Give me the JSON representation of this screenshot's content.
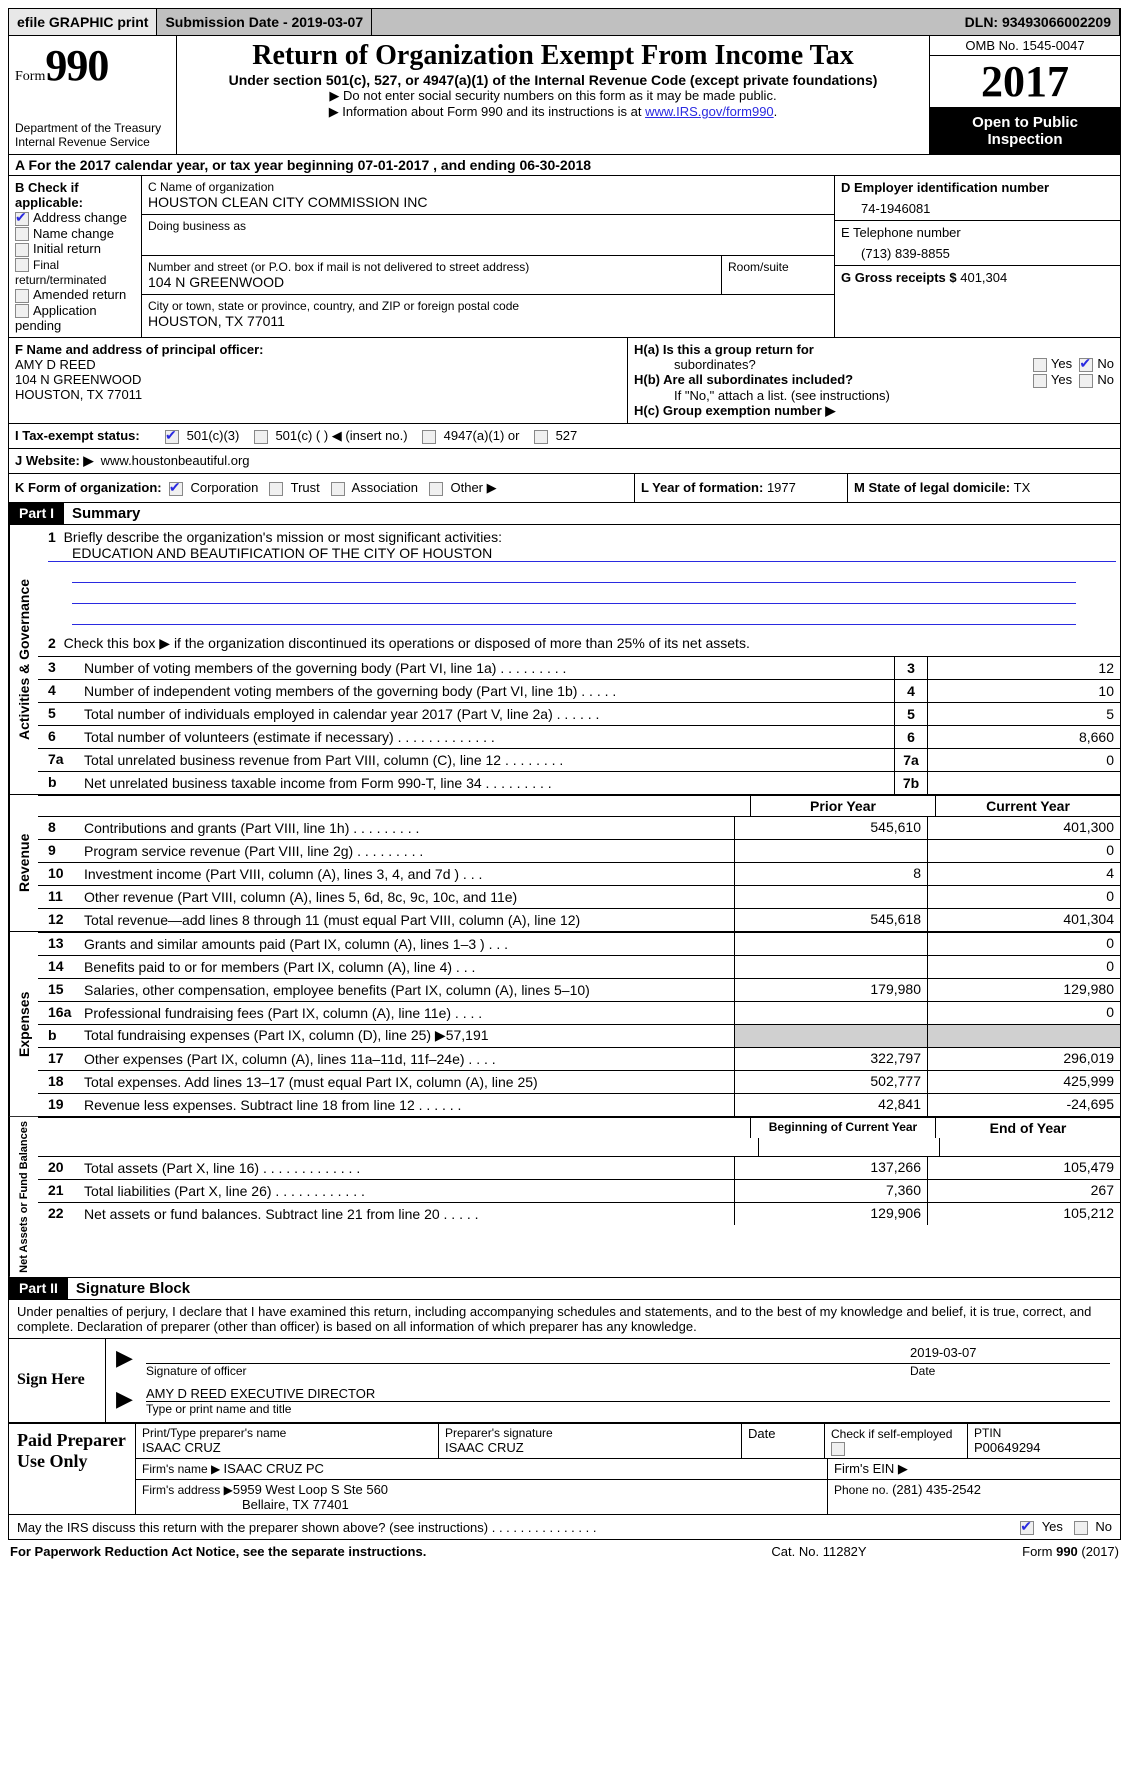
{
  "colors": {
    "header_bg": "#c0c0c0",
    "link": "#2a2ae0",
    "black": "#000000",
    "shade": "#d0d0d0"
  },
  "topbar": {
    "efile": "efile GRAPHIC print",
    "submission_label": "Submission Date - 2019-03-07",
    "dln": "DLN: 93493066002209"
  },
  "header": {
    "form_label": "Form",
    "form_number": "990",
    "dept": "Department of the Treasury",
    "irs": "Internal Revenue Service",
    "title": "Return of Organization Exempt From Income Tax",
    "subtitle": "Under section 501(c), 527, or 4947(a)(1) of the Internal Revenue Code (except private foundations)",
    "note1": "▶ Do not enter social security numbers on this form as it may be made public.",
    "note2_pre": "▶ Information about Form 990 and its instructions is at ",
    "note2_link": "www.IRS.gov/form990",
    "omb": "OMB No. 1545-0047",
    "year": "2017",
    "open1": "Open to Public",
    "open2": "Inspection"
  },
  "lineA": "A  For the 2017 calendar year, or tax year beginning 07-01-2017    , and ending 06-30-2018",
  "boxB": {
    "label": "B Check if applicable:",
    "items": [
      {
        "label": "Address change",
        "checked": true
      },
      {
        "label": "Name change",
        "checked": false
      },
      {
        "label": "Initial return",
        "checked": false
      },
      {
        "label": "Final return/terminated",
        "checked": false
      },
      {
        "label": "Amended return",
        "checked": false
      },
      {
        "label": "Application pending",
        "checked": false
      }
    ]
  },
  "boxC": {
    "name_label": "C Name of organization",
    "name": "HOUSTON CLEAN CITY COMMISSION INC",
    "dba_label": "Doing business as",
    "dba": "",
    "street_label": "Number and street (or P.O. box if mail is not delivered to street address)",
    "room_label": "Room/suite",
    "street": "104 N GREENWOOD",
    "city_label": "City or town, state or province, country, and ZIP or foreign postal code",
    "city": "HOUSTON, TX  77011"
  },
  "boxD": {
    "label": "D Employer identification number",
    "value": "74-1946081"
  },
  "boxE": {
    "label": "E Telephone number",
    "value": "(713) 839-8855"
  },
  "boxG": {
    "label": "G Gross receipts $ ",
    "value": "401,304"
  },
  "boxF": {
    "label": "F  Name and address of principal officer:",
    "name": "AMY D REED",
    "street": "104 N GREENWOOD",
    "city": "HOUSTON, TX  77011"
  },
  "boxH": {
    "a_label": "H(a)  Is this a group return for",
    "a_label2": "subordinates?",
    "a_yes": "Yes",
    "a_no": "No",
    "a_checked": "No",
    "b_label": "H(b)  Are all subordinates included?",
    "b_yes": "Yes",
    "b_no": "No",
    "note": "If \"No,\" attach a list. (see instructions)",
    "c_label": "H(c)  Group exemption number ▶"
  },
  "lineI": {
    "label": "I   Tax-exempt status:",
    "c3": "501(c)(3)",
    "c3_checked": true,
    "c": "501(c) (   ) ◀ (insert no.)",
    "a4947": "4947(a)(1) or",
    "s527": "527"
  },
  "lineJ": {
    "label": "J   Website: ▶",
    "value": "www.houstonbeautiful.org"
  },
  "lineK": {
    "label": "K Form of organization:",
    "corp": "Corporation",
    "corp_checked": true,
    "trust": "Trust",
    "assoc": "Association",
    "other": "Other ▶",
    "L_label": "L Year of formation: ",
    "L_val": "1977",
    "M_label": "M State of legal domicile: ",
    "M_val": "TX"
  },
  "partI": {
    "hdr": "Part I",
    "title": "Summary",
    "tab1": "Activities & Governance",
    "q1": "Briefly describe the organization's mission or most significant activities:",
    "mission": "EDUCATION AND BEAUTIFICATION OF THE CITY OF HOUSTON",
    "q2": "Check this box ▶        if the organization discontinued its operations or disposed of more than 25% of its net assets.",
    "lines": [
      {
        "n": "3",
        "t": "Number of voting members of the governing body (Part VI, line 1a)   .    .    .    .    .    .    .    .    .",
        "box": "3",
        "v": "12"
      },
      {
        "n": "4",
        "t": "Number of independent voting members of the governing body (Part VI, line 1b)   .    .    .    .    .",
        "box": "4",
        "v": "10"
      },
      {
        "n": "5",
        "t": "Total number of individuals employed in calendar year 2017 (Part V, line 2a)   .    .    .    .    .    .",
        "box": "5",
        "v": "5"
      },
      {
        "n": "6",
        "t": "Total number of volunteers (estimate if necessary)   .    .    .    .    .    .    .    .    .    .    .    .    .",
        "box": "6",
        "v": "8,660"
      },
      {
        "n": "7a",
        "t": "Total unrelated business revenue from Part VIII, column (C), line 12   .    .    .    .    .    .    .    .",
        "box": "7a",
        "v": "0"
      },
      {
        "n": "b",
        "t": "Net unrelated business taxable income from Form 990-T, line 34   .    .    .    .    .    .    .    .    .",
        "box": "7b",
        "v": ""
      }
    ],
    "tab2": "Revenue",
    "hdr_prior": "Prior Year",
    "hdr_curr": "Current Year",
    "rev": [
      {
        "n": "8",
        "t": "Contributions and grants (Part VIII, line 1h)   .    .    .    .    .    .    .    .    .",
        "p": "545,610",
        "c": "401,300"
      },
      {
        "n": "9",
        "t": "Program service revenue (Part VIII, line 2g)   .    .    .    .    .    .    .    .    .",
        "p": "",
        "c": "0"
      },
      {
        "n": "10",
        "t": "Investment income (Part VIII, column (A), lines 3, 4, and 7d )   .    .    .",
        "p": "8",
        "c": "4"
      },
      {
        "n": "11",
        "t": "Other revenue (Part VIII, column (A), lines 5, 6d, 8c, 9c, 10c, and 11e)",
        "p": "",
        "c": "0"
      },
      {
        "n": "12",
        "t": "Total revenue—add lines 8 through 11 (must equal Part VIII, column (A), line 12)",
        "p": "545,618",
        "c": "401,304"
      }
    ],
    "tab3": "Expenses",
    "exp": [
      {
        "n": "13",
        "t": "Grants and similar amounts paid (Part IX, column (A), lines 1–3 )   .    .    .",
        "p": "",
        "c": "0"
      },
      {
        "n": "14",
        "t": "Benefits paid to or for members (Part IX, column (A), line 4)   .    .    .",
        "p": "",
        "c": "0"
      },
      {
        "n": "15",
        "t": "Salaries, other compensation, employee benefits (Part IX, column (A), lines 5–10)",
        "p": "179,980",
        "c": "129,980"
      },
      {
        "n": "16a",
        "t": "Professional fundraising fees (Part IX, column (A), line 11e)   .    .    .    .",
        "p": "",
        "c": "0"
      },
      {
        "n": "b",
        "t": "Total fundraising expenses (Part IX, column (D), line 25) ▶57,191",
        "p": "shade",
        "c": "shade"
      },
      {
        "n": "17",
        "t": "Other expenses (Part IX, column (A), lines 11a–11d, 11f–24e)   .    .    .    .",
        "p": "322,797",
        "c": "296,019"
      },
      {
        "n": "18",
        "t": "Total expenses. Add lines 13–17 (must equal Part IX, column (A), line 25)",
        "p": "502,777",
        "c": "425,999"
      },
      {
        "n": "19",
        "t": "Revenue less expenses. Subtract line 18 from line 12   .    .    .    .    .    .",
        "p": "42,841",
        "c": "-24,695"
      }
    ],
    "tab4": "Net Assets or Fund Balances",
    "hdr_beg": "Beginning of Current Year",
    "hdr_end": "End of Year",
    "net": [
      {
        "n": "20",
        "t": "Total assets (Part X, line 16)  .    .    .    .    .    .    .    .    .    .    .    .    .",
        "p": "137,266",
        "c": "105,479"
      },
      {
        "n": "21",
        "t": "Total liabilities (Part X, line 26)  .    .    .    .    .    .    .    .    .    .    .    .",
        "p": "7,360",
        "c": "267"
      },
      {
        "n": "22",
        "t": "Net assets or fund balances. Subtract line 21 from line 20 .    .    .    .    .",
        "p": "129,906",
        "c": "105,212"
      }
    ]
  },
  "partII": {
    "hdr": "Part II",
    "title": "Signature Block",
    "intro": "Under penalties of perjury, I declare that I have examined this return, including accompanying schedules and statements, and to the best of my knowledge and belief, it is true, correct, and complete. Declaration of preparer (other than officer) is based on all information of which preparer has any knowledge.",
    "sign_here": "Sign Here",
    "sig_date": "2019-03-07",
    "sig_of": "Signature of officer",
    "date": "Date",
    "officer": "AMY D REED  EXECUTIVE DIRECTOR",
    "type_name": "Type or print name and title"
  },
  "paid": {
    "label": "Paid Preparer Use Only",
    "r1": {
      "a": "Print/Type preparer's name",
      "av": "ISAAC CRUZ",
      "b": "Preparer's signature",
      "bv": "ISAAC CRUZ",
      "c": "Date",
      "d": "Check         if self-employed",
      "e": "PTIN",
      "ev": "P00649294"
    },
    "r2": {
      "a": "Firm's name      ▶ ",
      "av": "ISAAC CRUZ PC",
      "b": "Firm's EIN ▶"
    },
    "r3": {
      "a": "Firm's address ▶",
      "av": "5959 West Loop S Ste 560",
      "c": "Bellaire, TX  77401",
      "b": "Phone no. ",
      "bv": "(281) 435-2542"
    }
  },
  "discuss": {
    "q": "May the IRS discuss this return with the preparer shown above? (see instructions)   .    .    .    .    .    .    .    .    .    .    .    .    .    .    .",
    "yes": "Yes",
    "no": "No",
    "checked": "Yes"
  },
  "foot": {
    "left": "For Paperwork Reduction Act Notice, see the separate instructions.",
    "mid": "Cat. No. 11282Y",
    "right": "Form 990 (2017)"
  }
}
